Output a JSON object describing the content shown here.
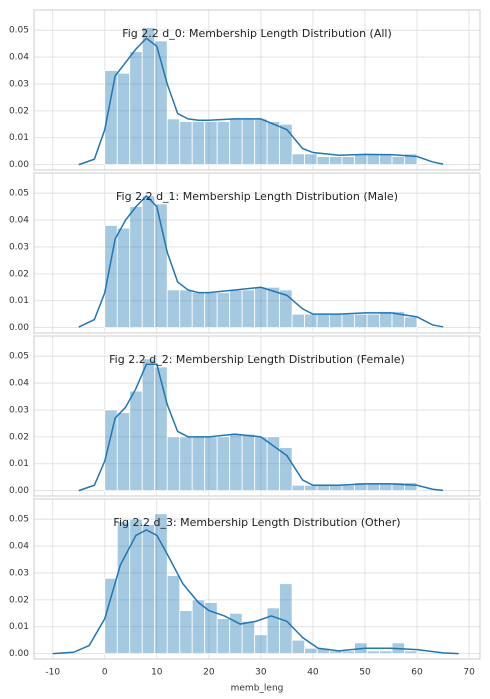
{
  "chart_data": [
    {
      "type": "histogram",
      "title": "Fig 2.2 d_0: Membership Length Distribution (All)",
      "bins": [
        0,
        2.4,
        4.8,
        7.2,
        9.6,
        12,
        14.4,
        16.8,
        19.2,
        21.6,
        24,
        26.4,
        28.8,
        31.2,
        33.6,
        36,
        38.4,
        40.8,
        43.2,
        45.6,
        48,
        50.4,
        52.8,
        55.2,
        57.6,
        60
      ],
      "values": [
        0.035,
        0.034,
        0.042,
        0.051,
        0.046,
        0.017,
        0.016,
        0.016,
        0.016,
        0.016,
        0.017,
        0.017,
        0.017,
        0.016,
        0.015,
        0.004,
        0.004,
        0.003,
        0.003,
        0.003,
        0.004,
        0.004,
        0.004,
        0.003,
        0.004
      ],
      "color": "#1f77b4",
      "bar_alpha": 0.4,
      "kde": {
        "x": [
          -5,
          -2,
          0,
          2,
          4,
          6,
          8,
          10,
          12,
          14,
          16,
          18,
          20,
          25,
          30,
          35,
          38,
          40,
          45,
          50,
          55,
          60,
          63,
          65
        ],
        "values": [
          0,
          0.002,
          0.013,
          0.033,
          0.038,
          0.043,
          0.047,
          0.044,
          0.03,
          0.019,
          0.017,
          0.0165,
          0.0165,
          0.017,
          0.017,
          0.013,
          0.006,
          0.0045,
          0.0035,
          0.0038,
          0.0037,
          0.003,
          0.001,
          0.0002
        ],
        "color": "#1f77b4"
      },
      "xlim": [
        -13.6,
        72.1
      ],
      "xticks": [
        -10,
        0,
        10,
        20,
        30,
        40,
        50,
        60,
        70
      ],
      "ylim": [
        -0.002,
        0.0575
      ],
      "yticks": [
        {
          "value": 0,
          "label": "0.00"
        },
        0.01,
        0.02,
        0.03,
        0.04,
        0.05
      ],
      "grid": true
    },
    {
      "type": "histogram",
      "title": "Fig 2.2 d_1: Membership Length Distribution (Male)",
      "bins": [
        0,
        2.4,
        4.8,
        7.2,
        9.6,
        12,
        14.4,
        16.8,
        19.2,
        21.6,
        24,
        26.4,
        28.8,
        31.2,
        33.6,
        36,
        38.4,
        40.8,
        43.2,
        45.6,
        48,
        50.4,
        52.8,
        55.2,
        57.6,
        60
      ],
      "values": [
        0.038,
        0.037,
        0.045,
        0.049,
        0.046,
        0.014,
        0.014,
        0.013,
        0.013,
        0.013,
        0.014,
        0.014,
        0.015,
        0.015,
        0.014,
        0.005,
        0.005,
        0.005,
        0.005,
        0.005,
        0.005,
        0.005,
        0.006,
        0.006,
        0.004
      ],
      "color": "#1f77b4",
      "bar_alpha": 0.4,
      "kde": {
        "x": [
          -5,
          -2,
          0,
          2,
          4,
          6,
          8,
          10,
          12,
          14,
          16,
          18,
          20,
          25,
          30,
          35,
          38,
          40,
          45,
          50,
          55,
          60,
          63,
          65
        ],
        "values": [
          0.0002,
          0.003,
          0.013,
          0.033,
          0.04,
          0.045,
          0.049,
          0.045,
          0.028,
          0.017,
          0.014,
          0.013,
          0.013,
          0.014,
          0.015,
          0.012,
          0.007,
          0.005,
          0.005,
          0.0055,
          0.0055,
          0.004,
          0.001,
          0.0003
        ],
        "color": "#1f77b4"
      },
      "xlim": [
        -13.6,
        72.1
      ],
      "xticks": [
        -10,
        0,
        10,
        20,
        30,
        40,
        50,
        60,
        70
      ],
      "ylim": [
        -0.002,
        0.0575
      ],
      "yticks": [
        {
          "value": 0,
          "label": "0.00"
        },
        0.01,
        0.02,
        0.03,
        0.04,
        0.05
      ],
      "grid": true
    },
    {
      "type": "histogram",
      "title": "Fig 2.2 d_2: Membership Length Distribution (Female)",
      "bins": [
        0,
        2.4,
        4.8,
        7.2,
        9.6,
        12,
        14.4,
        16.8,
        19.2,
        21.6,
        24,
        26.4,
        28.8,
        31.2,
        33.6,
        36,
        38.4,
        40.8,
        43.2,
        45.6,
        48,
        50.4,
        52.8,
        55.2,
        57.6,
        60
      ],
      "values": [
        0.03,
        0.029,
        0.037,
        0.049,
        0.046,
        0.02,
        0.02,
        0.02,
        0.02,
        0.02,
        0.021,
        0.021,
        0.02,
        0.02,
        0.016,
        0.002,
        0.002,
        0.002,
        0.002,
        0.002,
        0.003,
        0.003,
        0.003,
        0.003,
        0.003
      ],
      "color": "#1f77b4",
      "bar_alpha": 0.4,
      "kde": {
        "x": [
          -5,
          -2,
          0,
          2,
          4,
          6,
          8,
          10,
          12,
          14,
          16,
          18,
          20,
          25,
          30,
          35,
          38,
          40,
          45,
          50,
          55,
          60,
          63,
          65
        ],
        "values": [
          0,
          0.002,
          0.011,
          0.027,
          0.031,
          0.038,
          0.047,
          0.047,
          0.032,
          0.022,
          0.02,
          0.02,
          0.02,
          0.021,
          0.02,
          0.013,
          0.004,
          0.002,
          0.002,
          0.0025,
          0.0025,
          0.002,
          0.0005,
          0.0001
        ],
        "color": "#1f77b4"
      },
      "xlim": [
        -13.6,
        72.1
      ],
      "xticks": [
        -10,
        0,
        10,
        20,
        30,
        40,
        50,
        60,
        70
      ],
      "ylim": [
        -0.002,
        0.0575
      ],
      "yticks": [
        {
          "value": 0,
          "label": "0.00"
        },
        0.01,
        0.02,
        0.03,
        0.04,
        0.05
      ],
      "grid": true
    },
    {
      "type": "histogram",
      "title": "Fig 2.2 d_3: Membership Length Distribution (Other)",
      "bins": [
        0,
        2.4,
        4.8,
        7.2,
        9.6,
        12,
        14.4,
        16.8,
        19.2,
        21.6,
        24,
        26.4,
        28.8,
        31.2,
        33.6,
        36,
        38.4,
        40.8,
        43.2,
        45.6,
        48,
        50.4,
        52.8,
        55.2,
        57.6,
        60
      ],
      "values": [
        0.028,
        0.049,
        0.05,
        0.048,
        0.052,
        0.029,
        0.016,
        0.02,
        0.019,
        0.013,
        0.015,
        0.012,
        0.007,
        0.017,
        0.026,
        0.005,
        0.002,
        0.002,
        0.001,
        0.001,
        0.004,
        0.001,
        0.001,
        0.004,
        0.001
      ],
      "color": "#1f77b4",
      "bar_alpha": 0.4,
      "kde": {
        "x": [
          -10,
          -6,
          -3,
          0,
          3,
          6,
          8,
          10,
          12,
          15,
          18,
          20,
          23,
          26,
          29,
          32,
          35,
          38,
          41,
          45,
          50,
          55,
          60,
          65,
          68
        ],
        "values": [
          0,
          0.0005,
          0.003,
          0.013,
          0.033,
          0.044,
          0.046,
          0.044,
          0.037,
          0.026,
          0.019,
          0.016,
          0.014,
          0.011,
          0.012,
          0.014,
          0.012,
          0.006,
          0.002,
          0.001,
          0.002,
          0.002,
          0.0015,
          0.0003,
          0
        ],
        "color": "#1f77b4"
      },
      "xlim": [
        -13.6,
        72.1
      ],
      "xticks": [
        -10,
        0,
        10,
        20,
        30,
        40,
        50,
        60,
        70
      ],
      "xlabel": "memb_leng",
      "ylim": [
        -0.002,
        0.0575
      ],
      "yticks": [
        {
          "value": 0,
          "label": "0.00"
        },
        0.01,
        0.02,
        0.03,
        0.04,
        0.05
      ],
      "grid": true
    }
  ]
}
